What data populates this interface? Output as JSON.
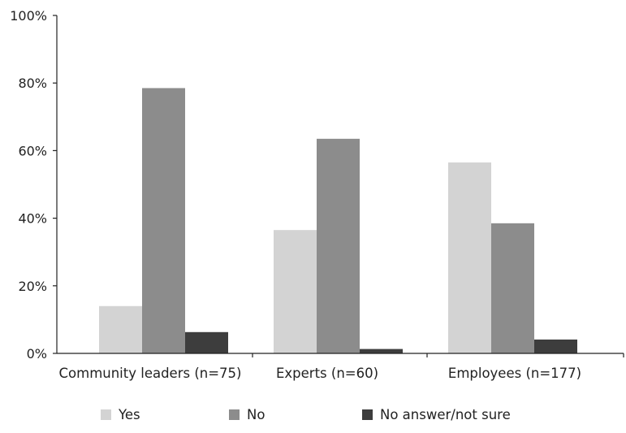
{
  "chart_data": {
    "type": "bar",
    "categories": [
      "Community leaders (n=75)",
      "Experts (n=60)",
      "Employees (n=177)"
    ],
    "series": [
      {
        "name": "Yes",
        "values": [
          14,
          36.5,
          56.5
        ],
        "color": "#d3d3d3"
      },
      {
        "name": "No",
        "values": [
          78.5,
          63.5,
          38.5
        ],
        "color": "#8c8c8c"
      },
      {
        "name": "No answer/not sure",
        "values": [
          6.3,
          1.3,
          4.1
        ],
        "color": "#3d3d3d"
      }
    ],
    "yticks": [
      "0%",
      "20%",
      "40%",
      "60%",
      "80%",
      "100%"
    ],
    "ylim": [
      0,
      100
    ],
    "legend_position": "bottom",
    "grid": false
  }
}
